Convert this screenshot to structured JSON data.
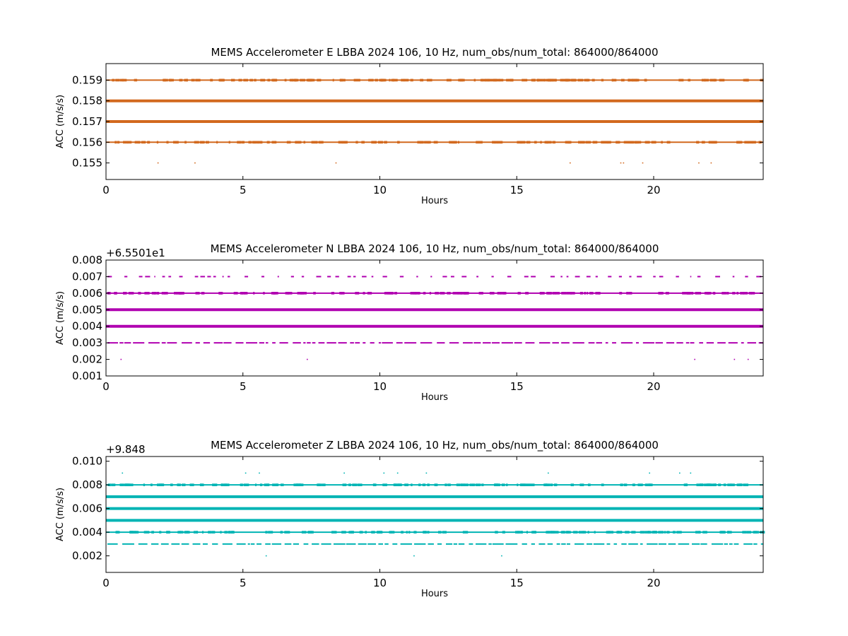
{
  "chart_data": [
    {
      "type": "scatter",
      "title": "MEMS Accelerometer E LBBA 2024 106, 10 Hz, num_obs/num_total: 864000/864000",
      "xlabel": "Hours",
      "ylabel": "ACC (m/s/s)",
      "offset_text": "",
      "color": "#d2691e",
      "xlim": [
        0,
        24
      ],
      "ylim": [
        0.1542,
        0.1598
      ],
      "xticks": [
        0,
        5,
        10,
        15,
        20
      ],
      "xtick_labels": [
        "0",
        "5",
        "10",
        "15",
        "20"
      ],
      "yticks": [
        0.155,
        0.156,
        0.157,
        0.158,
        0.159
      ],
      "ytick_labels": [
        "0.155",
        "0.156",
        "0.157",
        "0.158",
        "0.159"
      ],
      "bands": [
        {
          "y": 0.159,
          "density": "dense"
        },
        {
          "y": 0.158,
          "density": "solid"
        },
        {
          "y": 0.157,
          "density": "solid"
        },
        {
          "y": 0.156,
          "density": "dense"
        }
      ],
      "points": [
        {
          "x": 1.9,
          "y": 0.155
        },
        {
          "x": 3.25,
          "y": 0.155
        },
        {
          "x": 8.4,
          "y": 0.155
        },
        {
          "x": 16.95,
          "y": 0.155
        },
        {
          "x": 18.8,
          "y": 0.155
        },
        {
          "x": 18.9,
          "y": 0.155
        },
        {
          "x": 19.6,
          "y": 0.155
        },
        {
          "x": 21.65,
          "y": 0.155
        },
        {
          "x": 22.1,
          "y": 0.155
        }
      ]
    },
    {
      "type": "scatter",
      "title": "MEMS Accelerometer N LBBA 2024 106, 10 Hz, num_obs/num_total: 864000/864000",
      "xlabel": "Hours",
      "ylabel": "ACC (m/s/s)",
      "offset_text": "+6.5501e1",
      "color": "#b000b0",
      "xlim": [
        0,
        24
      ],
      "ylim": [
        0.001,
        0.008
      ],
      "xticks": [
        0,
        5,
        10,
        15,
        20
      ],
      "xtick_labels": [
        "0",
        "5",
        "10",
        "15",
        "20"
      ],
      "yticks": [
        0.001,
        0.002,
        0.003,
        0.004,
        0.005,
        0.006,
        0.007,
        0.008
      ],
      "ytick_labels": [
        "0.001",
        "0.002",
        "0.003",
        "0.004",
        "0.005",
        "0.006",
        "0.007",
        "0.008"
      ],
      "bands": [
        {
          "y": 0.007,
          "density": "sparse"
        },
        {
          "y": 0.006,
          "density": "dense"
        },
        {
          "y": 0.005,
          "density": "solid"
        },
        {
          "y": 0.004,
          "density": "solid"
        },
        {
          "y": 0.003,
          "density": "medium"
        }
      ],
      "points": [
        {
          "x": 0.55,
          "y": 0.002
        },
        {
          "x": 7.35,
          "y": 0.002
        },
        {
          "x": 21.5,
          "y": 0.002
        },
        {
          "x": 22.95,
          "y": 0.002
        },
        {
          "x": 23.45,
          "y": 0.002
        }
      ]
    },
    {
      "type": "scatter",
      "title": "MEMS Accelerometer Z LBBA 2024 106, 10 Hz, num_obs/num_total: 864000/864000",
      "xlabel": "Hours",
      "ylabel": "ACC (m/s/s)",
      "offset_text": "+9.848",
      "color": "#00b4b4",
      "xlim": [
        0,
        24
      ],
      "ylim": [
        0.0006,
        0.0104
      ],
      "xticks": [
        0,
        5,
        10,
        15,
        20
      ],
      "xtick_labels": [
        "0",
        "5",
        "10",
        "15",
        "20"
      ],
      "yticks": [
        0.002,
        0.004,
        0.006,
        0.008,
        0.01
      ],
      "ytick_labels": [
        "0.002",
        "0.004",
        "0.006",
        "0.008",
        "0.010"
      ],
      "bands": [
        {
          "y": 0.008,
          "density": "dense"
        },
        {
          "y": 0.007,
          "density": "solid"
        },
        {
          "y": 0.006,
          "density": "solid"
        },
        {
          "y": 0.005,
          "density": "solid"
        },
        {
          "y": 0.004,
          "density": "dense"
        },
        {
          "y": 0.003,
          "density": "medium"
        }
      ],
      "points": [
        {
          "x": 0.6,
          "y": 0.009
        },
        {
          "x": 5.1,
          "y": 0.009
        },
        {
          "x": 5.6,
          "y": 0.009
        },
        {
          "x": 8.7,
          "y": 0.009
        },
        {
          "x": 10.15,
          "y": 0.009
        },
        {
          "x": 10.65,
          "y": 0.009
        },
        {
          "x": 11.7,
          "y": 0.009
        },
        {
          "x": 16.15,
          "y": 0.009
        },
        {
          "x": 19.85,
          "y": 0.009
        },
        {
          "x": 20.95,
          "y": 0.009
        },
        {
          "x": 21.35,
          "y": 0.009
        },
        {
          "x": 5.85,
          "y": 0.002
        },
        {
          "x": 11.25,
          "y": 0.002
        },
        {
          "x": 14.45,
          "y": 0.002
        }
      ]
    }
  ]
}
